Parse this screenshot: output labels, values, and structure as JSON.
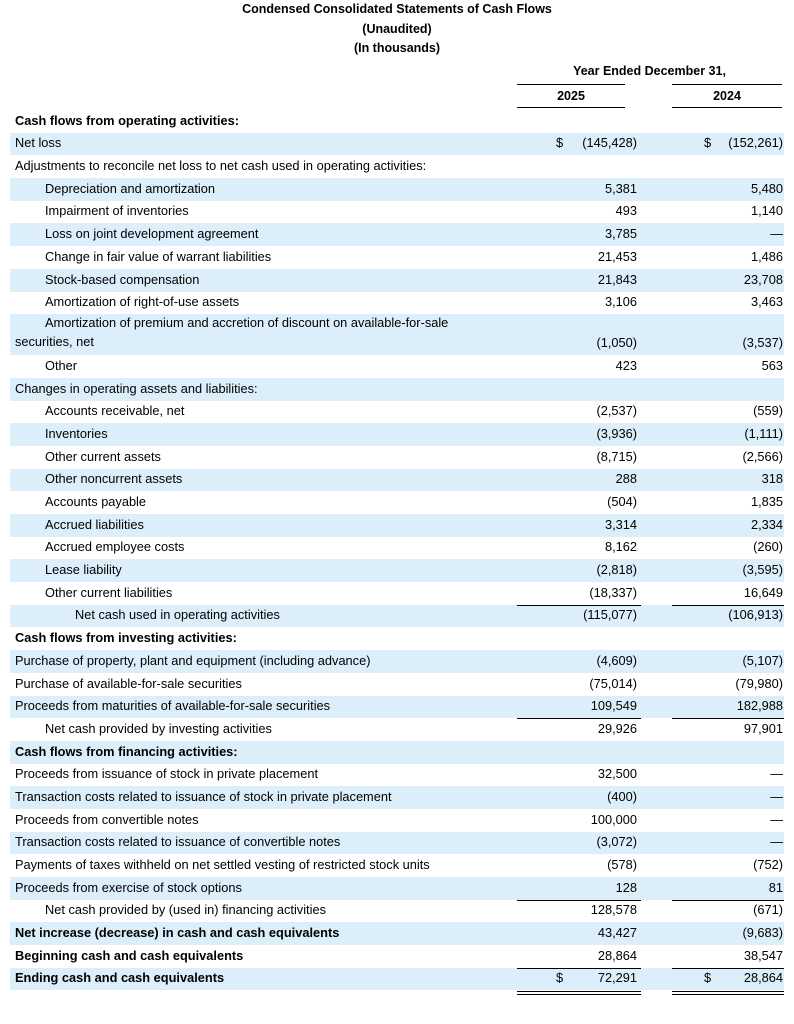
{
  "header": {
    "title": "Condensed Consolidated Statements of Cash Flows",
    "subtitle": "(Unaudited)",
    "units": "(In thousands)",
    "period": "Year Ended December 31,",
    "col1": "2025",
    "col2": "2024"
  },
  "rows": [
    {
      "label": "Cash flows from operating activities:",
      "bold": true,
      "indent": 0
    },
    {
      "label": "Net loss",
      "v1": "(145,428)",
      "v2": "(152,261)",
      "cur1": "$",
      "cur2": "$",
      "shade": true
    },
    {
      "label": "Adjustments to reconcile net loss to net cash used in operating activities:"
    },
    {
      "label": "Depreciation and amortization",
      "indent": 1,
      "v1": "5,381",
      "v2": "5,480",
      "shade": true
    },
    {
      "label": "Impairment of inventories",
      "indent": 1,
      "v1": "493",
      "v2": "1,140"
    },
    {
      "label": "Loss on joint development agreement",
      "indent": 1,
      "v1": "3,785",
      "v2": "—",
      "shade": true
    },
    {
      "label": "Change in fair value of warrant liabilities",
      "indent": 1,
      "v1": "21,453",
      "v2": "1,486"
    },
    {
      "label": "Stock-based compensation",
      "indent": 1,
      "v1": "21,843",
      "v2": "23,708",
      "shade": true
    },
    {
      "label": "Amortization of right-of-use assets",
      "indent": 1,
      "v1": "3,106",
      "v2": "3,463"
    },
    {
      "label": "Amortization of premium and accretion of discount on available-for-sale securities, net",
      "indent": 1,
      "v1": "(1,050)",
      "v2": "(3,537)",
      "shade": true,
      "tall": true
    },
    {
      "label": "Other",
      "indent": 1,
      "v1": "423",
      "v2": "563"
    },
    {
      "label": "Changes in operating assets and liabilities:",
      "shade": true
    },
    {
      "label": "Accounts receivable, net",
      "indent": 1,
      "v1": "(2,537)",
      "v2": "(559)"
    },
    {
      "label": "Inventories",
      "indent": 1,
      "v1": "(3,936)",
      "v2": "(1,111)",
      "shade": true
    },
    {
      "label": "Other current assets",
      "indent": 1,
      "v1": "(8,715)",
      "v2": "(2,566)"
    },
    {
      "label": "Other noncurrent assets",
      "indent": 1,
      "v1": "288",
      "v2": "318",
      "shade": true
    },
    {
      "label": "Accounts payable",
      "indent": 1,
      "v1": "(504)",
      "v2": "1,835"
    },
    {
      "label": "Accrued liabilities",
      "indent": 1,
      "v1": "3,314",
      "v2": "2,334",
      "shade": true
    },
    {
      "label": "Accrued employee costs",
      "indent": 1,
      "v1": "8,162",
      "v2": "(260)"
    },
    {
      "label": "Lease liability",
      "indent": 1,
      "v1": "(2,818)",
      "v2": "(3,595)",
      "shade": true
    },
    {
      "label": "Other current liabilities",
      "indent": 1,
      "v1": "(18,337)",
      "v2": "16,649"
    },
    {
      "label": "Net cash used in operating activities",
      "indent": 2,
      "v1": "(115,077)",
      "v2": "(106,913)",
      "shade": true,
      "rule": true
    },
    {
      "label": "Cash flows from investing activities:",
      "bold": true
    },
    {
      "label": "Purchase of property, plant and equipment (including advance)",
      "v1": "(4,609)",
      "v2": "(5,107)",
      "shade": true
    },
    {
      "label": "Purchase of available-for-sale securities",
      "v1": "(75,014)",
      "v2": "(79,980)"
    },
    {
      "label": "Proceeds from maturities of available-for-sale securities",
      "v1": "109,549",
      "v2": "182,988",
      "shade": true
    },
    {
      "label": "Net cash provided by investing activities",
      "indent": 1,
      "v1": "29,926",
      "v2": "97,901",
      "rule": true
    },
    {
      "label": "Cash flows from financing activities:",
      "bold": true,
      "shade": true
    },
    {
      "label": "Proceeds from issuance of stock in private placement",
      "v1": "32,500",
      "v2": "—"
    },
    {
      "label": "Transaction costs related to issuance of stock in private placement",
      "v1": "(400)",
      "v2": "—",
      "shade": true
    },
    {
      "label": "Proceeds from convertible notes",
      "v1": "100,000",
      "v2": "—"
    },
    {
      "label": "Transaction costs related to issuance of convertible notes",
      "v1": "(3,072)",
      "v2": "—",
      "shade": true
    },
    {
      "label": "Payments of taxes withheld on net settled vesting of restricted stock units",
      "v1": "(578)",
      "v2": "(752)"
    },
    {
      "label": "Proceeds from exercise of stock options",
      "v1": "128",
      "v2": "81",
      "shade": true
    },
    {
      "label": "Net cash provided by (used in) financing activities",
      "indent": 1,
      "v1": "128,578",
      "v2": "(671)",
      "rule": true
    },
    {
      "label": "Net increase (decrease) in cash and cash equivalents",
      "bold": true,
      "v1": "43,427",
      "v2": "(9,683)",
      "shade": true
    },
    {
      "label": "Beginning cash and cash equivalents",
      "bold": true,
      "v1": "28,864",
      "v2": "38,547"
    },
    {
      "label": "Ending cash and cash equivalents",
      "bold": true,
      "v1": "72,291",
      "v2": "28,864",
      "cur1": "$",
      "cur2": "$",
      "shade": true,
      "rule": true,
      "double": true
    }
  ]
}
